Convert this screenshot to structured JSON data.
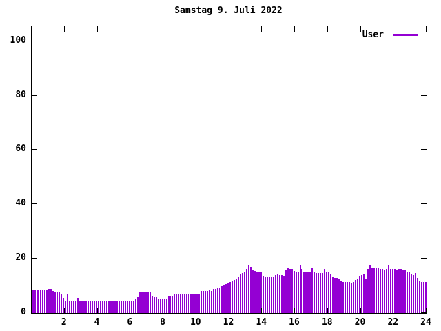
{
  "title": "Samstag 9. Juli 2022",
  "legend": {
    "label": "User",
    "color": "#9400D3"
  },
  "colors": {
    "background": "#ffffff",
    "foreground": "#000000",
    "bar": "#9400D3"
  },
  "chart_data": {
    "type": "bar",
    "title": "Samstag 9. Juli 2022",
    "xlabel": "",
    "ylabel": "",
    "series_name": "User",
    "bar_color": "#9400D3",
    "xlim": [
      0,
      24
    ],
    "ylim": [
      0,
      105.5
    ],
    "x_ticks": [
      2,
      4,
      6,
      8,
      10,
      12,
      14,
      16,
      18,
      20,
      22,
      24
    ],
    "y_ticks": [
      0,
      20,
      40,
      60,
      80,
      100
    ],
    "grid": false,
    "legend_position": "top-right-inside",
    "x_unit": "hour of day",
    "hours_per_bar": 0.125,
    "values": [
      8.3,
      8.5,
      8.4,
      8.6,
      8.4,
      8.5,
      8.6,
      8.4,
      8.9,
      9.0,
      8.2,
      8.0,
      8.0,
      7.6,
      7.2,
      5.6,
      4.6,
      6.8,
      4.5,
      4.4,
      4.4,
      4.5,
      5.6,
      4.4,
      4.4,
      4.3,
      4.4,
      4.5,
      4.3,
      4.4,
      4.4,
      4.3,
      4.5,
      4.4,
      4.3,
      4.4,
      4.4,
      4.5,
      4.3,
      4.4,
      4.4,
      4.3,
      4.5,
      4.4,
      4.3,
      4.4,
      4.5,
      4.4,
      4.4,
      4.6,
      5.2,
      6.2,
      7.9,
      8.0,
      7.8,
      7.7,
      7.6,
      7.5,
      6.3,
      6.2,
      6.1,
      5.4,
      5.3,
      5.2,
      5.3,
      5.2,
      6.3,
      6.4,
      6.3,
      6.8,
      6.9,
      6.8,
      7.0,
      7.1,
      7.0,
      7.2,
      7.1,
      7.0,
      7.1,
      7.2,
      7.0,
      7.1,
      8.1,
      8.2,
      8.2,
      8.1,
      8.3,
      8.2,
      8.8,
      9.0,
      9.3,
      9.5,
      9.8,
      10.2,
      10.6,
      11.0,
      11.4,
      11.8,
      12.3,
      12.8,
      13.4,
      14.2,
      14.6,
      15.0,
      16.2,
      17.4,
      17.0,
      15.9,
      15.4,
      15.2,
      15.0,
      14.9,
      13.8,
      13.3,
      13.2,
      13.1,
      13.3,
      13.2,
      14.0,
      14.1,
      14.0,
      13.9,
      13.6,
      15.8,
      16.4,
      16.2,
      16.3,
      15.4,
      15.0,
      15.1,
      17.4,
      16.3,
      15.2,
      15.0,
      14.9,
      15.1,
      16.8,
      15.0,
      14.7,
      14.6,
      14.8,
      14.7,
      16.2,
      15.1,
      15.0,
      14.3,
      13.4,
      13.0,
      12.9,
      12.4,
      11.6,
      11.5,
      11.3,
      11.4,
      11.3,
      11.2,
      11.4,
      12.3,
      12.8,
      13.6,
      14.0,
      14.2,
      12.6,
      16.3,
      17.6,
      16.8,
      16.5,
      16.6,
      16.4,
      16.2,
      16.3,
      16.1,
      16.2,
      17.4,
      16.3,
      16.2,
      16.3,
      16.1,
      16.2,
      16.3,
      16.1,
      15.9,
      15.0,
      14.9,
      14.1,
      13.9,
      14.6,
      12.9,
      11.6,
      11.5,
      11.4,
      11.3
    ]
  }
}
